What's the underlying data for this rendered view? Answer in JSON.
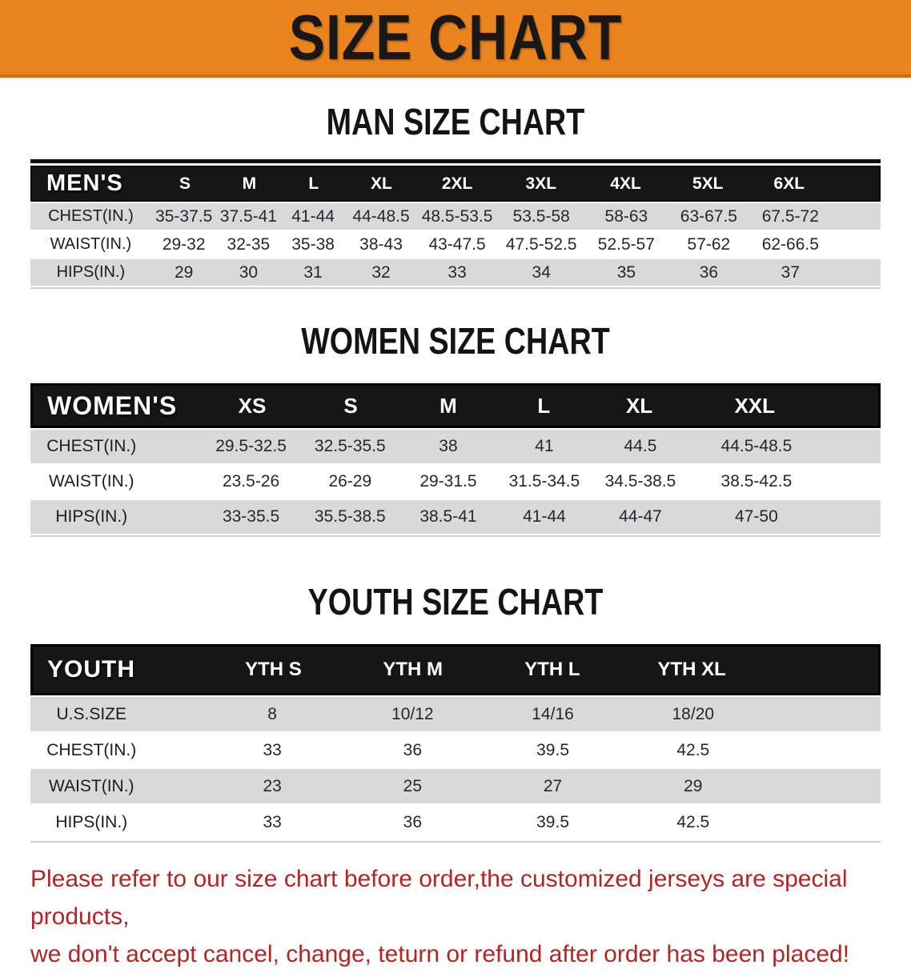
{
  "banner": {
    "title": "SIZE CHART",
    "bg_color": "#E8831E",
    "text_color": "#181818"
  },
  "sections": [
    {
      "id": "men",
      "title": "MAN SIZE CHART",
      "table": {
        "header_label": "MEN'S",
        "columns": [
          "S",
          "M",
          "L",
          "XL",
          "2XL",
          "3XL",
          "4XL",
          "5XL",
          "6XL"
        ],
        "rows": [
          {
            "label": "CHEST(IN.)",
            "values": [
              "35-37.5",
              "37.5-41",
              "41-44",
              "44-48.5",
              "48.5-53.5",
              "53.5-58",
              "58-63",
              "63-67.5",
              "67.5-72"
            ]
          },
          {
            "label": "WAIST(IN.)",
            "values": [
              "29-32",
              "32-35",
              "35-38",
              "38-43",
              "43-47.5",
              "47.5-52.5",
              "52.5-57",
              "57-62",
              "62-66.5"
            ]
          },
          {
            "label": "HIPS(IN.)",
            "values": [
              "29",
              "30",
              "31",
              "32",
              "33",
              "34",
              "35",
              "36",
              "37"
            ]
          }
        ]
      }
    },
    {
      "id": "women",
      "title": "WOMEN SIZE CHART",
      "table": {
        "header_label": "WOMEN'S",
        "columns": [
          "XS",
          "S",
          "M",
          "L",
          "XL",
          "XXL"
        ],
        "rows": [
          {
            "label": "CHEST(IN.)",
            "values": [
              "29.5-32.5",
              "32.5-35.5",
              "38",
              "41",
              "44.5",
              "44.5-48.5"
            ]
          },
          {
            "label": "WAIST(IN.)",
            "values": [
              "23.5-26",
              "26-29",
              "29-31.5",
              "31.5-34.5",
              "34.5-38.5",
              "38.5-42.5"
            ]
          },
          {
            "label": "HIPS(IN.)",
            "values": [
              "33-35.5",
              "35.5-38.5",
              "38.5-41",
              "41-44",
              "44-47",
              "47-50"
            ]
          }
        ]
      }
    },
    {
      "id": "youth",
      "title": "YOUTH SIZE CHART",
      "table": {
        "header_label": "YOUTH",
        "columns": [
          "YTH S",
          "YTH M",
          "YTH L",
          "YTH XL"
        ],
        "rows": [
          {
            "label": "U.S.SIZE",
            "values": [
              "8",
              "10/12",
              "14/16",
              "18/20"
            ]
          },
          {
            "label": "CHEST(IN.)",
            "values": [
              "33",
              "36",
              "39.5",
              "42.5"
            ]
          },
          {
            "label": "WAIST(IN.)",
            "values": [
              "23",
              "25",
              "27",
              "29"
            ]
          },
          {
            "label": "HIPS(IN.)",
            "values": [
              "33",
              "36",
              "39.5",
              "42.5"
            ]
          }
        ]
      }
    }
  ],
  "disclaimer": {
    "text_color": "#B32525",
    "line1": "Please refer to our size chart before order,the customized jerseys are special products,",
    "line2": "we don't accept cancel, change, teturn or refund after order has been placed!"
  },
  "style_colors": {
    "table_header_bg": "#161616",
    "stripe_row_bg": "#D9D9D9"
  }
}
